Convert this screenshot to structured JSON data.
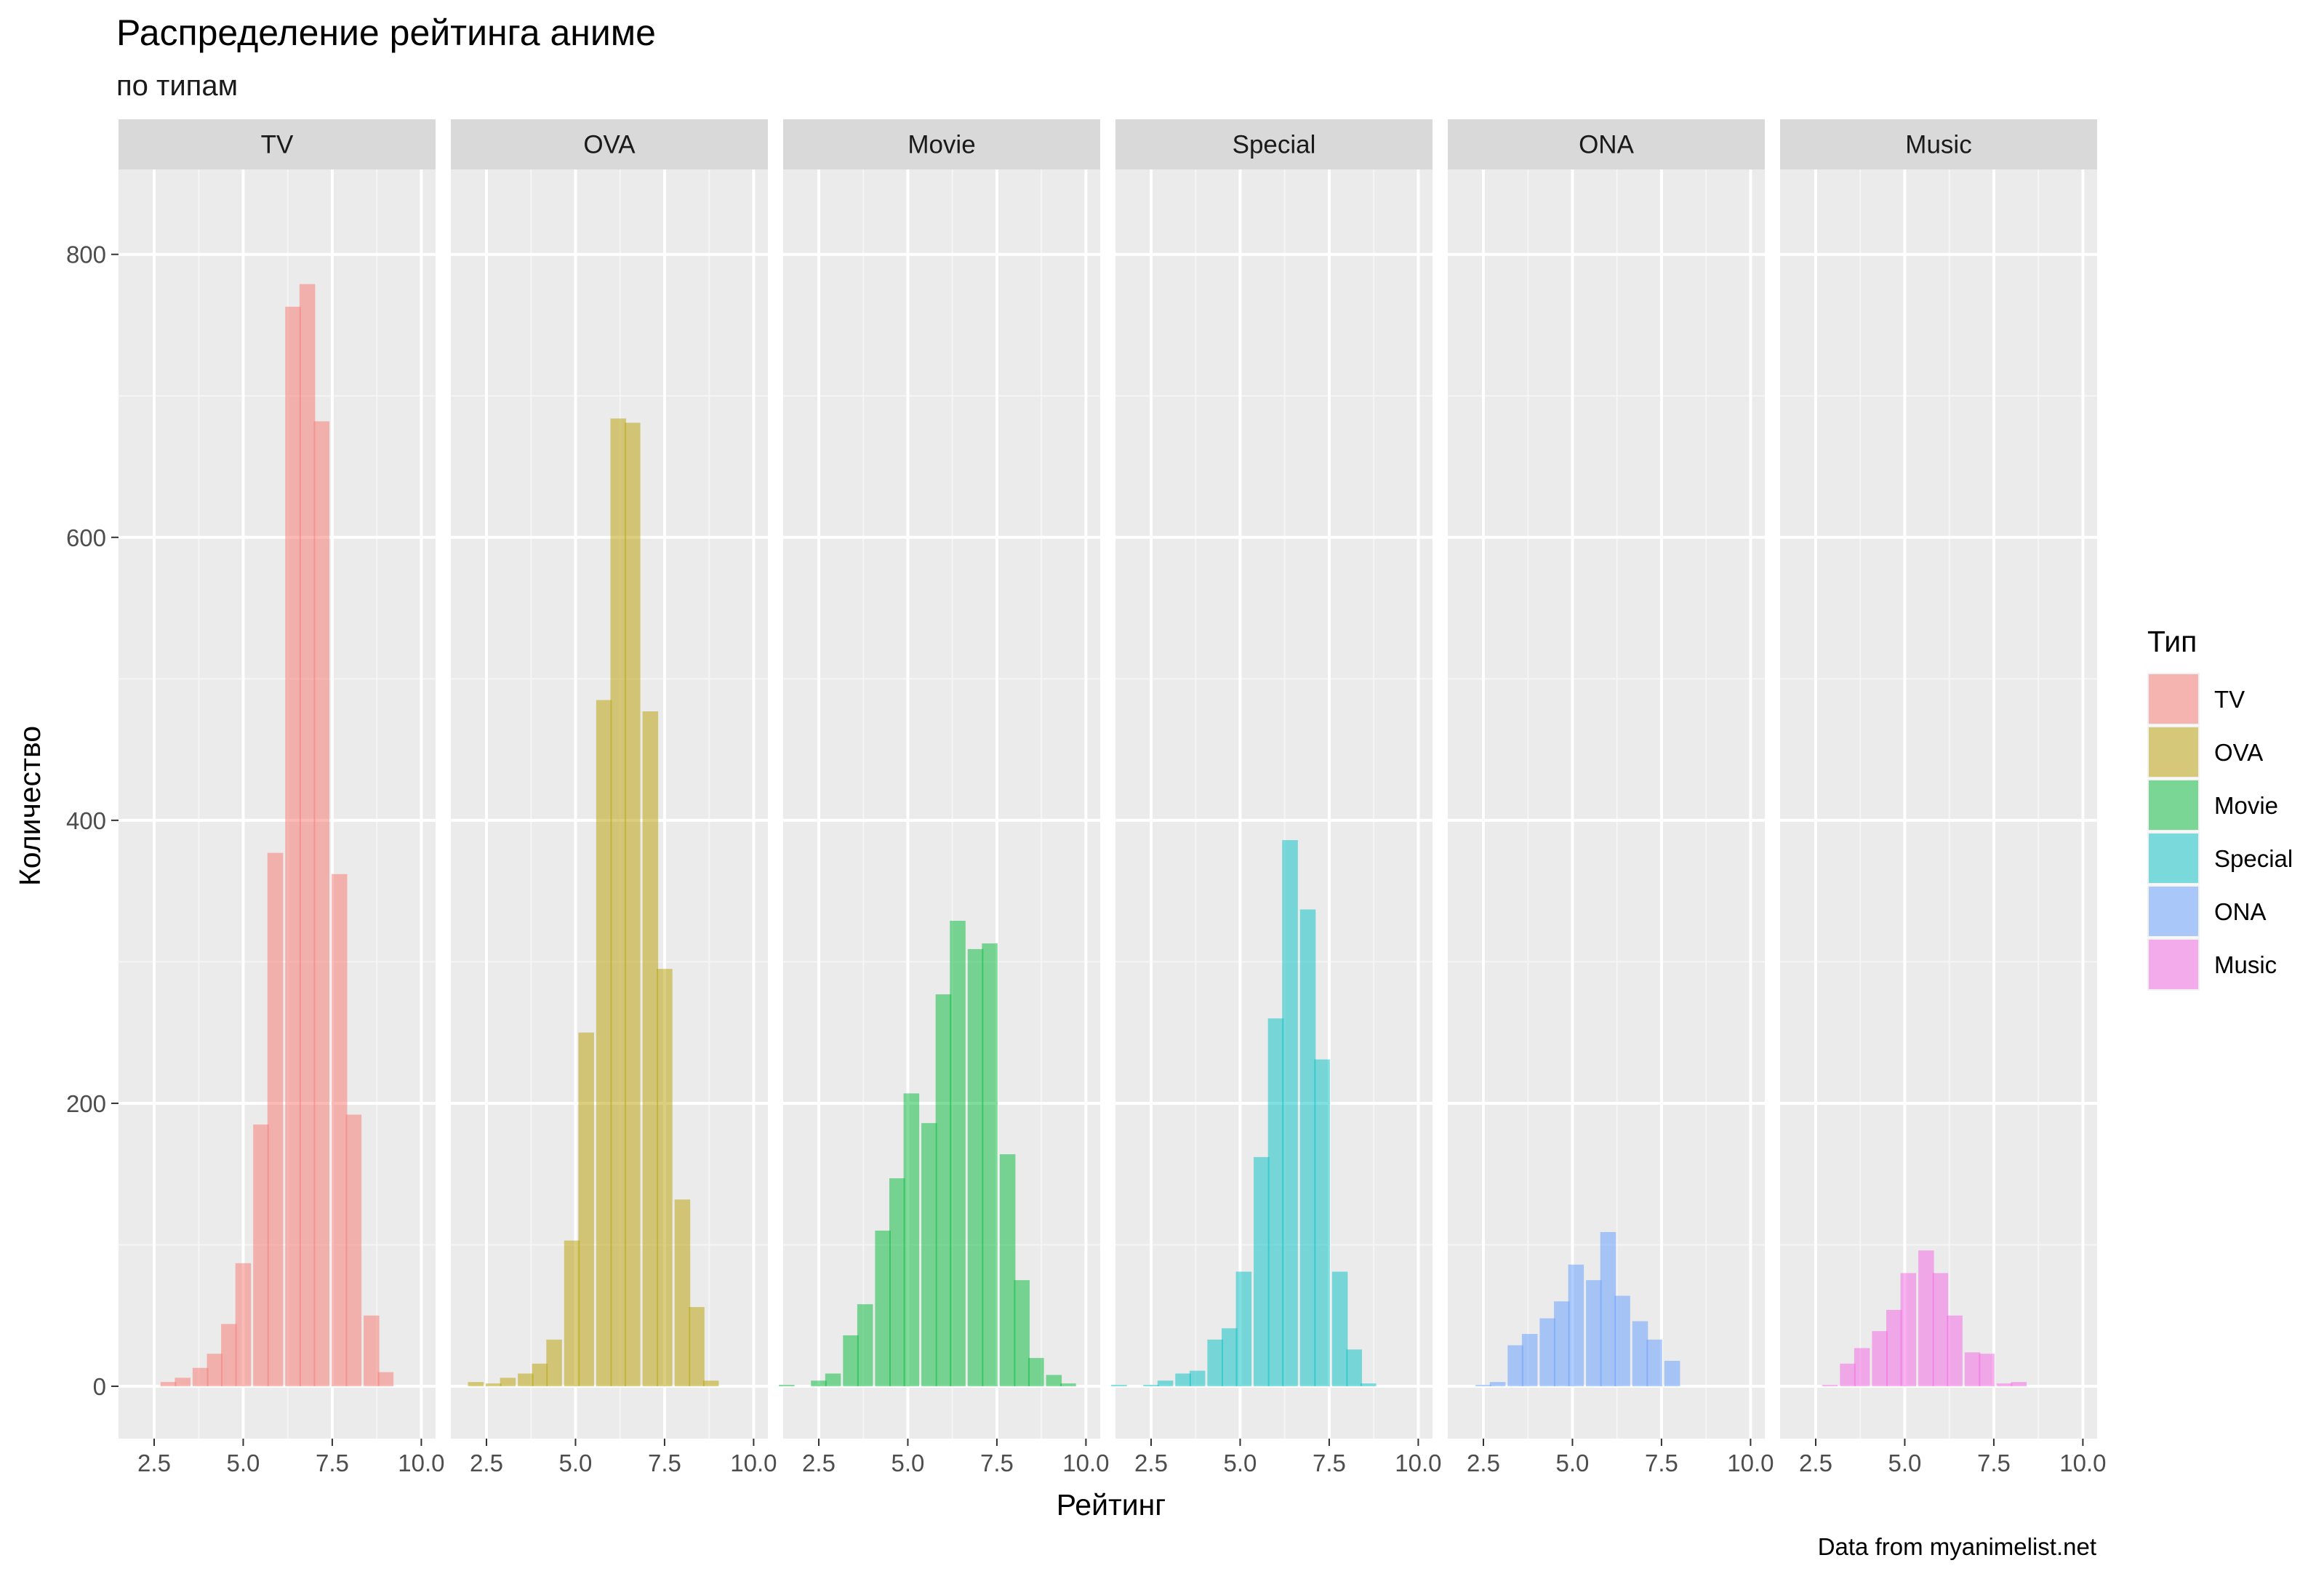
{
  "chart_data": {
    "type": "bar",
    "title": "Распределение рейтинга аниме",
    "subtitle": "по типам",
    "xlabel": "Рейтинг",
    "ylabel": "Количество",
    "caption": "Data from myanimelist.net",
    "xlim": [
      1.5,
      10.4
    ],
    "ylim": [
      -37,
      860
    ],
    "x_ticks": [
      2.5,
      5.0,
      7.5,
      10.0
    ],
    "x_tick_labels": [
      "2.5",
      "5.0",
      "7.5",
      "10.0"
    ],
    "y_ticks": [
      0,
      200,
      400,
      600,
      800
    ],
    "y_tick_labels": [
      "0",
      "200",
      "400",
      "600",
      "800"
    ],
    "grid": true,
    "bin_width": 0.44,
    "legend": {
      "title": "Тип",
      "position": "right",
      "entries": [
        "TV",
        "OVA",
        "Movie",
        "Special",
        "ONA",
        "Music"
      ]
    },
    "series": [
      {
        "name": "TV",
        "color": "#F8766D",
        "x": [
          2.9,
          3.3,
          3.8,
          4.2,
          4.6,
          5.0,
          5.5,
          5.9,
          6.4,
          6.8,
          7.2,
          7.7,
          8.1,
          8.6,
          9.0
        ],
        "values": [
          3,
          6,
          13,
          23,
          44,
          87,
          185,
          377,
          763,
          779,
          682,
          362,
          192,
          50,
          10
        ]
      },
      {
        "name": "OVA",
        "color": "#B79F00",
        "x": [
          2.2,
          2.7,
          3.1,
          3.6,
          4.0,
          4.4,
          4.9,
          5.3,
          5.8,
          6.2,
          6.6,
          7.1,
          7.5,
          8.0,
          8.4,
          8.8
        ],
        "values": [
          3,
          2,
          6,
          9,
          16,
          33,
          103,
          250,
          485,
          684,
          681,
          477,
          295,
          132,
          56,
          4
        ]
      },
      {
        "name": "Movie",
        "color": "#00BA38",
        "x": [
          1.6,
          2.1,
          2.5,
          2.9,
          3.4,
          3.8,
          4.3,
          4.7,
          5.1,
          5.6,
          6.0,
          6.4,
          6.9,
          7.3,
          7.8,
          8.2,
          8.6,
          9.1,
          9.5
        ],
        "values": [
          1,
          0,
          4,
          9,
          36,
          58,
          110,
          147,
          207,
          186,
          277,
          329,
          309,
          313,
          164,
          75,
          20,
          8,
          2
        ]
      },
      {
        "name": "Special",
        "color": "#00BFC4",
        "x": [
          1.6,
          2.1,
          2.5,
          2.9,
          3.4,
          3.8,
          4.3,
          4.7,
          5.1,
          5.6,
          6.0,
          6.4,
          6.9,
          7.3,
          7.8,
          8.2,
          8.6
        ],
        "values": [
          1,
          0,
          1,
          4,
          9,
          11,
          33,
          41,
          81,
          162,
          260,
          386,
          337,
          231,
          81,
          26,
          2
        ]
      },
      {
        "name": "ONA",
        "color": "#619CFF",
        "x": [
          2.5,
          2.9,
          3.4,
          3.8,
          4.3,
          4.7,
          5.1,
          5.6,
          6.0,
          6.4,
          6.9,
          7.3,
          7.8
        ],
        "values": [
          1,
          3,
          29,
          37,
          48,
          60,
          86,
          75,
          109,
          64,
          46,
          33,
          18
        ]
      },
      {
        "name": "Music",
        "color": "#F564E3",
        "x": [
          2.9,
          3.4,
          3.8,
          4.3,
          4.7,
          5.1,
          5.6,
          6.0,
          6.4,
          6.9,
          7.3,
          7.8,
          8.2
        ],
        "values": [
          1,
          16,
          27,
          39,
          54,
          80,
          96,
          80,
          50,
          24,
          23,
          2,
          3
        ]
      }
    ]
  }
}
